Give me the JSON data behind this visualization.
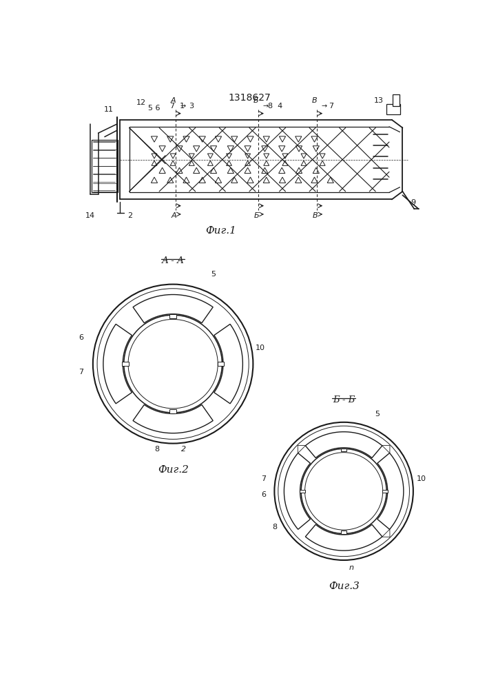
{
  "title": "1318627",
  "fig1_label": "Фиг.1",
  "fig2_label": "Фиг.2",
  "fig3_label": "Фиг.3",
  "aa_label": "А - А",
  "bb_label": "Б - Б",
  "background": "#ffffff",
  "line_color": "#1a1a1a"
}
